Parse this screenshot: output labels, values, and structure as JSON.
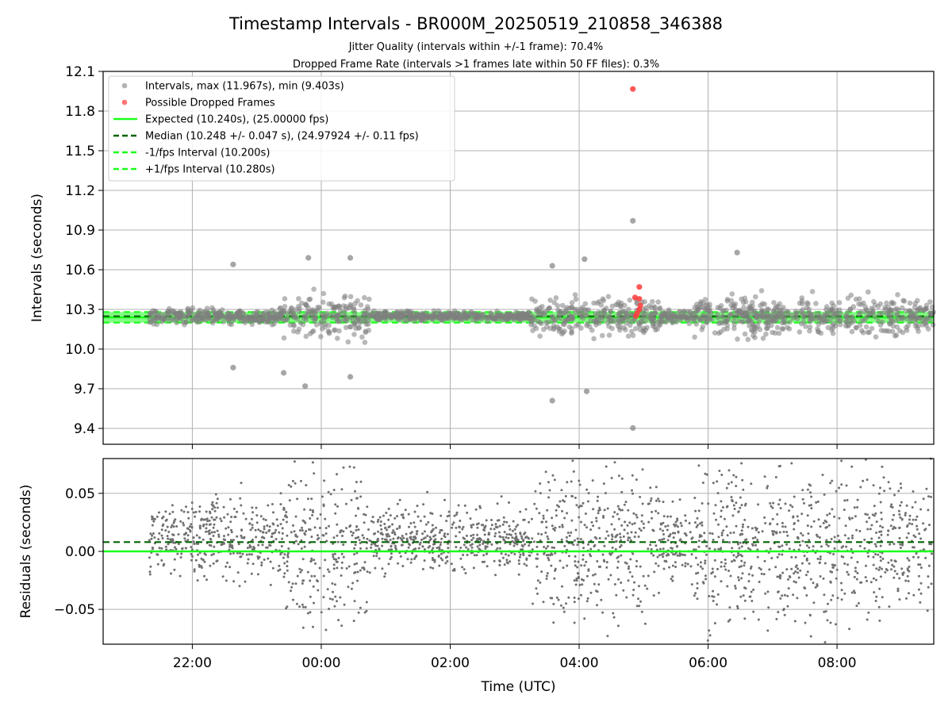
{
  "title": "Timestamp Intervals - BR000M_20250519_210858_346388",
  "subtitle_line1": "Jitter Quality (intervals within +/-1 frame): 70.4%",
  "subtitle_line2": "Dropped Frame Rate (intervals >1 frames late within 50 FF files): 0.3%",
  "colors": {
    "intervals": "#808080",
    "dropped": "#ff3b3b",
    "expected": "#1aff1a",
    "median": "#006400",
    "bounds": "#1aff1a",
    "grid": "#b0b0b0"
  },
  "chart_data": [
    {
      "type": "scatter",
      "id": "intervals",
      "ylabel": "Intervals (seconds)",
      "ylim": [
        9.28,
        12.1
      ],
      "yticks": [
        9.4,
        9.7,
        10.0,
        10.3,
        10.6,
        10.9,
        11.2,
        11.5,
        11.8,
        12.1
      ],
      "ytick_labels": [
        "9.4",
        "9.7",
        "10.0",
        "10.3",
        "10.6",
        "10.9",
        "11.2",
        "11.5",
        "11.8",
        "12.1"
      ],
      "grid": true,
      "legend_position": "top-left",
      "legend": [
        {
          "label": "Intervals, max (11.967s), min (9.403s)",
          "kind": "point",
          "color": "#808080"
        },
        {
          "label": "Possible Dropped Frames",
          "kind": "point",
          "color": "#ff3b3b"
        },
        {
          "label": "Expected (10.240s), (25.00000 fps)",
          "kind": "solid",
          "color": "#1aff1a"
        },
        {
          "label": "Median (10.248 +/- 0.047 s), (24.97924 +/- 0.11 fps)",
          "kind": "dashed",
          "color": "#006400"
        },
        {
          "label": "-1/fps Interval (10.200s)",
          "kind": "dashed",
          "color": "#1aff1a"
        },
        {
          "label": "+1/fps Interval (10.280s)",
          "kind": "dashed",
          "color": "#1aff1a"
        }
      ],
      "reference_lines": {
        "expected": 10.24,
        "median": 10.248,
        "lower": 10.2,
        "upper": 10.28
      },
      "outliers": [
        {
          "time": "04:50",
          "interval": 11.967,
          "dropped": true
        },
        {
          "time": "04:50",
          "interval": 10.97,
          "dropped": false
        },
        {
          "time": "04:50",
          "interval": 9.403,
          "dropped": false
        },
        {
          "time": "03:35",
          "interval": 9.61,
          "dropped": false
        },
        {
          "time": "04:07",
          "interval": 9.68,
          "dropped": false
        },
        {
          "time": "23:45",
          "interval": 9.72,
          "dropped": false
        },
        {
          "time": "22:38",
          "interval": 9.86,
          "dropped": false
        },
        {
          "time": "00:27",
          "interval": 9.79,
          "dropped": false
        },
        {
          "time": "23:25",
          "interval": 9.82,
          "dropped": false
        },
        {
          "time": "22:38",
          "interval": 10.64,
          "dropped": false
        },
        {
          "time": "23:48",
          "interval": 10.69,
          "dropped": false
        },
        {
          "time": "00:27",
          "interval": 10.69,
          "dropped": false
        },
        {
          "time": "06:27",
          "interval": 10.73,
          "dropped": false
        },
        {
          "time": "04:05",
          "interval": 10.68,
          "dropped": false
        },
        {
          "time": "03:35",
          "interval": 10.63,
          "dropped": false
        },
        {
          "time": "04:56",
          "interval": 10.47,
          "dropped": true
        },
        {
          "time": "04:52",
          "interval": 10.39,
          "dropped": true
        },
        {
          "time": "04:56",
          "interval": 10.38,
          "dropped": true
        },
        {
          "time": "04:57",
          "interval": 10.33,
          "dropped": true
        },
        {
          "time": "04:56",
          "interval": 10.3,
          "dropped": true
        },
        {
          "time": "04:54",
          "interval": 10.27,
          "dropped": true
        },
        {
          "time": "04:53",
          "interval": 10.25,
          "dropped": true
        }
      ],
      "clusters": [
        {
          "start": "21:20",
          "end": "23:25",
          "spread": 0.05
        },
        {
          "start": "23:25",
          "end": "00:45",
          "spread": 0.14
        },
        {
          "start": "00:45",
          "end": "03:15",
          "spread": 0.03
        },
        {
          "start": "03:15",
          "end": "05:15",
          "spread": 0.13
        },
        {
          "start": "05:15",
          "end": "05:45",
          "spread": 0.05
        },
        {
          "start": "05:45",
          "end": "09:30",
          "spread": 0.12
        }
      ]
    },
    {
      "type": "scatter",
      "id": "residuals",
      "xlabel": "Time (UTC)",
      "ylabel": "Residuals (seconds)",
      "ylim": [
        -0.08,
        0.08
      ],
      "yticks": [
        -0.05,
        0.0,
        0.05
      ],
      "ytick_labels": [
        "−0.05",
        "0.00",
        "0.05"
      ],
      "x_range": [
        "20:37",
        "09:30"
      ],
      "xticks": [
        "22:00",
        "00:00",
        "02:00",
        "04:00",
        "06:00",
        "08:00"
      ],
      "grid": true,
      "reference_lines": {
        "expected": 0.0,
        "median": 0.008
      },
      "clusters": [
        {
          "start": "21:20",
          "end": "23:25",
          "center": 0.012,
          "spread": 0.03
        },
        {
          "start": "23:25",
          "end": "00:45",
          "center": 0.005,
          "spread": 0.06
        },
        {
          "start": "00:45",
          "end": "03:15",
          "center": 0.01,
          "spread": 0.025
        },
        {
          "start": "03:15",
          "end": "05:15",
          "center": 0.008,
          "spread": 0.055
        },
        {
          "start": "05:15",
          "end": "05:45",
          "center": 0.01,
          "spread": 0.03
        },
        {
          "start": "05:45",
          "end": "09:30",
          "center": 0.005,
          "spread": 0.06
        }
      ]
    }
  ]
}
